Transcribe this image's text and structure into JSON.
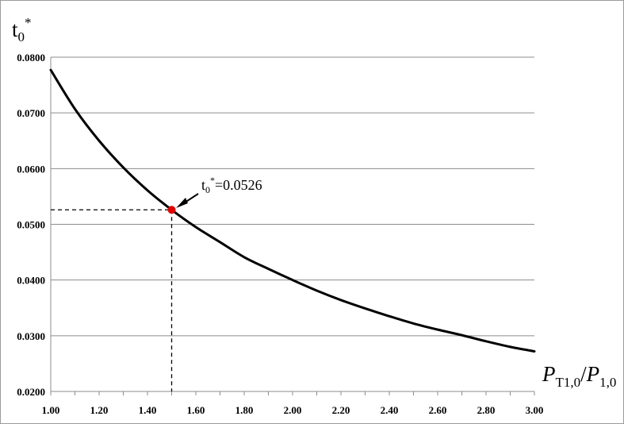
{
  "chart_data": {
    "type": "line",
    "title": "",
    "ylabel": "t0*",
    "xlabel": "PT1,0/P1,0",
    "ylabel_parts": {
      "base": "t",
      "sub": "0",
      "sup": "*"
    },
    "xlabel_parts": {
      "num_base": "P",
      "num_sub": "T1,0",
      "slash": "/",
      "den_base": "P",
      "den_sub": "1,0"
    },
    "xlim": [
      1.0,
      3.0
    ],
    "ylim": [
      0.02,
      0.08
    ],
    "xticks": [
      "1.00",
      "1.20",
      "1.40",
      "1.60",
      "1.80",
      "2.00",
      "2.20",
      "2.40",
      "2.60",
      "2.80",
      "3.00"
    ],
    "yticks": [
      "0.0200",
      "0.0300",
      "0.0400",
      "0.0500",
      "0.0600",
      "0.0700",
      "0.0800"
    ],
    "grid": "horizontal",
    "series": [
      {
        "color": "#000000",
        "x": [
          1.0,
          1.1,
          1.2,
          1.3,
          1.4,
          1.5,
          1.6,
          1.7,
          1.8,
          1.9,
          2.0,
          2.1,
          2.2,
          2.3,
          2.4,
          2.5,
          2.6,
          2.7,
          2.8,
          2.9,
          3.0
        ],
        "y": [
          0.0777,
          0.0707,
          0.065,
          0.0602,
          0.0561,
          0.0526,
          0.0495,
          0.0468,
          0.0441,
          0.042,
          0.04,
          0.0381,
          0.0364,
          0.0349,
          0.0335,
          0.0322,
          0.0311,
          0.0301,
          0.029,
          0.028,
          0.0272
        ]
      }
    ],
    "highlight": {
      "x": 1.5,
      "y": 0.0526,
      "color": "#e00000",
      "label_parts": {
        "base": "t",
        "sub": "0",
        "sup": "*",
        "rest": "=0.0526"
      }
    }
  }
}
